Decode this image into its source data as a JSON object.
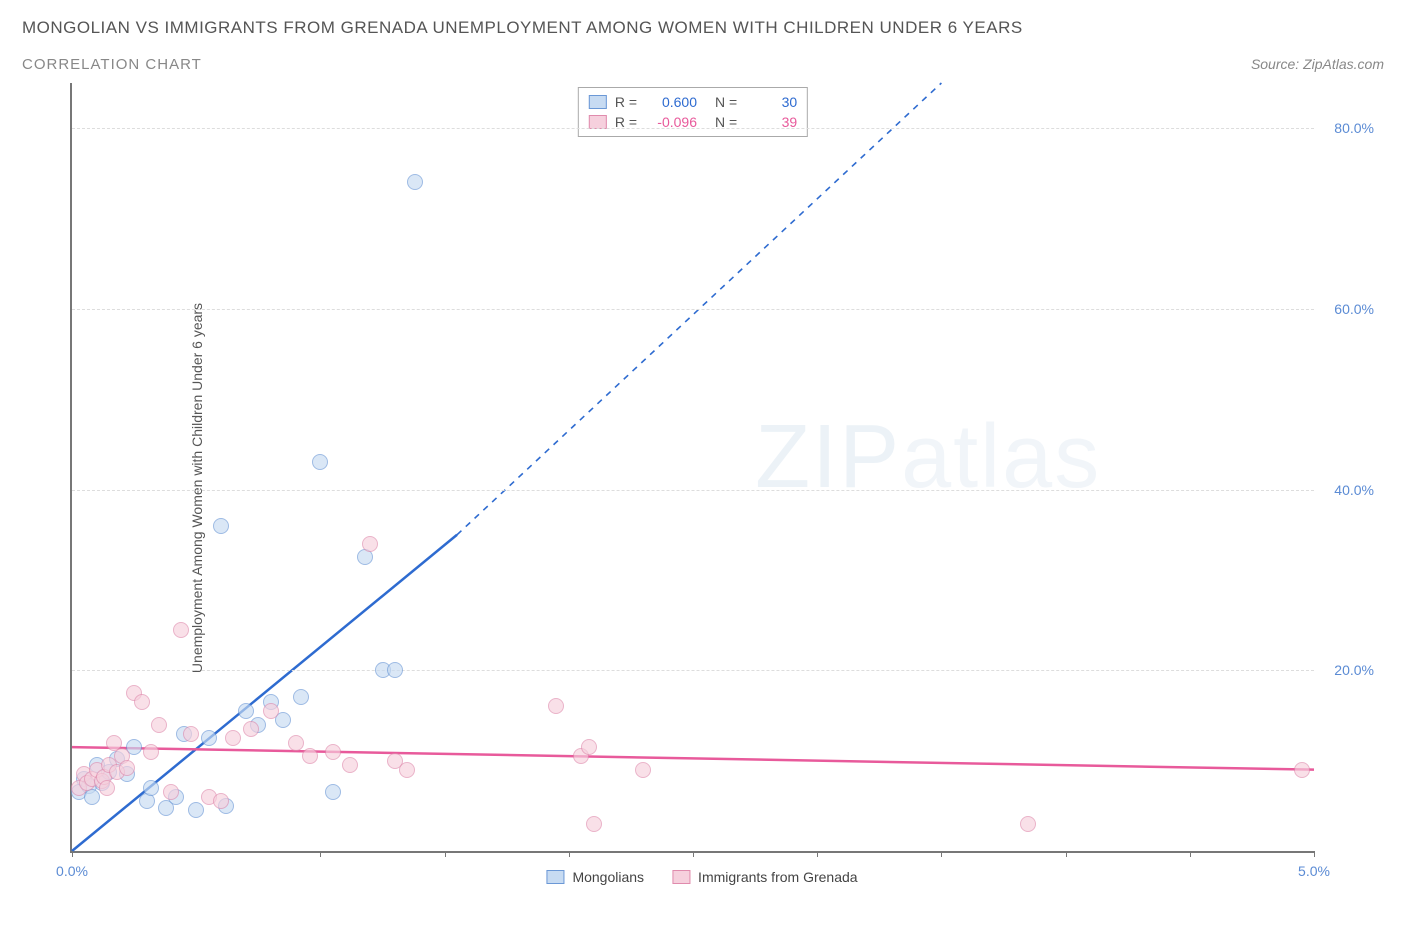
{
  "title": "MONGOLIAN VS IMMIGRANTS FROM GRENADA UNEMPLOYMENT AMONG WOMEN WITH CHILDREN UNDER 6 YEARS",
  "subtitle": "CORRELATION CHART",
  "source": "Source: ZipAtlas.com",
  "ylabel": "Unemployment Among Women with Children Under 6 years",
  "watermark_a": "ZIP",
  "watermark_b": "atlas",
  "chart": {
    "type": "scatter",
    "xlim": [
      0.0,
      5.0
    ],
    "ylim": [
      0.0,
      85.0
    ],
    "x_ticks": [
      0.0,
      1.0,
      1.5,
      2.0,
      2.5,
      3.0,
      3.5,
      4.0,
      4.5,
      5.0
    ],
    "x_tick_labels": {
      "0": "0.0%",
      "5": "5.0%"
    },
    "x_tick_color": "#5b8bd4",
    "y_gridlines": [
      20.0,
      40.0,
      60.0,
      80.0
    ],
    "y_tick_labels": {
      "20": "20.0%",
      "40": "40.0%",
      "60": "60.0%",
      "80": "80.0%"
    },
    "y_tick_color": "#5b8bd4",
    "grid_color": "#dddddd",
    "axis_color": "#777777",
    "background_color": "#ffffff",
    "marker_radius": 8,
    "marker_opacity": 0.65
  },
  "series": [
    {
      "name": "Mongolians",
      "color_fill": "#c7dbf2",
      "color_stroke": "#6b98d6",
      "trend_color": "#2e6bd0",
      "r": "0.600",
      "n": "30",
      "trend": {
        "x1": 0.0,
        "y1": 0.0,
        "x2_solid": 1.55,
        "y2_solid": 35.0,
        "x2_dash": 3.5,
        "y2_dash": 85.0
      },
      "points": [
        [
          0.03,
          6.5
        ],
        [
          0.05,
          8.0
        ],
        [
          0.07,
          7.2
        ],
        [
          0.08,
          6.0
        ],
        [
          0.1,
          9.5
        ],
        [
          0.12,
          7.5
        ],
        [
          0.15,
          8.8
        ],
        [
          0.18,
          10.2
        ],
        [
          0.22,
          8.5
        ],
        [
          0.25,
          11.5
        ],
        [
          0.3,
          5.5
        ],
        [
          0.32,
          7.0
        ],
        [
          0.38,
          4.8
        ],
        [
          0.42,
          6.0
        ],
        [
          0.45,
          13.0
        ],
        [
          0.5,
          4.5
        ],
        [
          0.55,
          12.5
        ],
        [
          0.6,
          36.0
        ],
        [
          0.62,
          5.0
        ],
        [
          0.7,
          15.5
        ],
        [
          0.75,
          14.0
        ],
        [
          0.8,
          16.5
        ],
        [
          0.85,
          14.5
        ],
        [
          0.92,
          17.0
        ],
        [
          1.0,
          43.0
        ],
        [
          1.05,
          6.5
        ],
        [
          1.18,
          32.5
        ],
        [
          1.25,
          20.0
        ],
        [
          1.3,
          20.0
        ],
        [
          1.38,
          74.0
        ]
      ]
    },
    {
      "name": "Immigrants from Grenada",
      "color_fill": "#f6d0dd",
      "color_stroke": "#e08bad",
      "trend_color": "#e85a9b",
      "r": "-0.096",
      "n": "39",
      "trend": {
        "x1": 0.0,
        "y1": 11.5,
        "x2_solid": 5.0,
        "y2_solid": 9.0,
        "x2_dash": 5.0,
        "y2_dash": 9.0
      },
      "points": [
        [
          0.03,
          7.0
        ],
        [
          0.05,
          8.5
        ],
        [
          0.06,
          7.5
        ],
        [
          0.08,
          8.0
        ],
        [
          0.1,
          9.0
        ],
        [
          0.12,
          7.8
        ],
        [
          0.13,
          8.2
        ],
        [
          0.15,
          9.5
        ],
        [
          0.17,
          12.0
        ],
        [
          0.18,
          8.8
        ],
        [
          0.2,
          10.5
        ],
        [
          0.22,
          9.2
        ],
        [
          0.25,
          17.5
        ],
        [
          0.28,
          16.5
        ],
        [
          0.32,
          11.0
        ],
        [
          0.35,
          14.0
        ],
        [
          0.4,
          6.5
        ],
        [
          0.44,
          24.5
        ],
        [
          0.48,
          13.0
        ],
        [
          0.55,
          6.0
        ],
        [
          0.6,
          5.5
        ],
        [
          0.65,
          12.5
        ],
        [
          0.72,
          13.5
        ],
        [
          0.8,
          15.5
        ],
        [
          0.9,
          12.0
        ],
        [
          0.96,
          10.5
        ],
        [
          1.05,
          11.0
        ],
        [
          1.12,
          9.5
        ],
        [
          1.2,
          34.0
        ],
        [
          1.3,
          10.0
        ],
        [
          1.35,
          9.0
        ],
        [
          1.95,
          16.0
        ],
        [
          2.05,
          10.5
        ],
        [
          2.08,
          11.5
        ],
        [
          2.1,
          3.0
        ],
        [
          2.3,
          9.0
        ],
        [
          3.85,
          3.0
        ],
        [
          4.95,
          9.0
        ],
        [
          0.14,
          7.0
        ]
      ]
    }
  ],
  "legend": {
    "r_label": "R =",
    "n_label": "N ="
  }
}
